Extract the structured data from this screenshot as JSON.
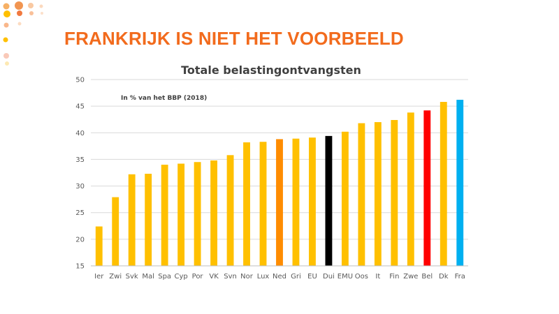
{
  "slide": {
    "title": "FRANKRIJK IS NIET HET VOORBEELD"
  },
  "colors": {
    "title": "#f26b1d",
    "bar_default": "#ffc000",
    "bar_ned": "#ff8c00",
    "bar_dui": "#000000",
    "bar_bel": "#ff0000",
    "bar_fra": "#00b0f0"
  },
  "chart_data": {
    "type": "bar",
    "title": "Totale belastingontvangsten",
    "annotation": "In % van het BBP (2018)",
    "xlabel": "",
    "ylabel": "",
    "ylim": [
      15,
      50
    ],
    "yticks": [
      15,
      20,
      25,
      30,
      35,
      40,
      45,
      50
    ],
    "grid": true,
    "legend": "none",
    "categories": [
      "Ier",
      "Zwi",
      "Svk",
      "Mal",
      "Spa",
      "Cyp",
      "Por",
      "VK",
      "Svn",
      "Nor",
      "Lux",
      "Ned",
      "Gri",
      "EU",
      "Dui",
      "EMU",
      "Oos",
      "It",
      "Fin",
      "Zwe",
      "Bel",
      "Dk",
      "Fra"
    ],
    "values": [
      22.4,
      27.9,
      32.2,
      32.3,
      34.0,
      34.2,
      34.5,
      34.8,
      35.8,
      38.2,
      38.3,
      38.8,
      38.9,
      39.1,
      39.4,
      40.2,
      41.8,
      42.0,
      42.4,
      43.8,
      44.2,
      45.8,
      46.2
    ],
    "bar_colors": [
      "#ffc000",
      "#ffc000",
      "#ffc000",
      "#ffc000",
      "#ffc000",
      "#ffc000",
      "#ffc000",
      "#ffc000",
      "#ffc000",
      "#ffc000",
      "#ffc000",
      "#ff8c00",
      "#ffc000",
      "#ffc000",
      "#000000",
      "#ffc000",
      "#ffc000",
      "#ffc000",
      "#ffc000",
      "#ffc000",
      "#ff0000",
      "#ffc000",
      "#00b0f0"
    ]
  }
}
